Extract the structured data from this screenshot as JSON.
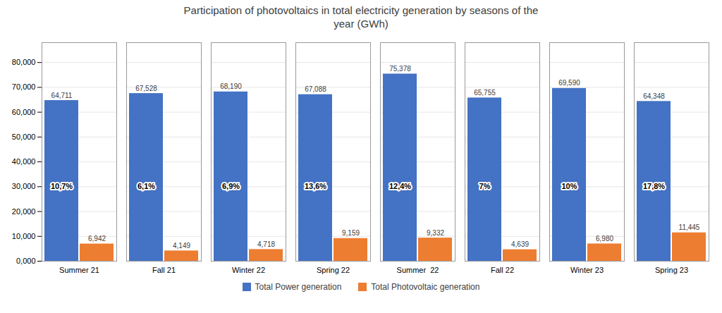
{
  "chart_data": {
    "type": "bar",
    "title": "Participation of photovoltaics in total electricity generation by seasons of the\nyear (GWh)",
    "categories": [
      "Summer 21",
      "Fall 21",
      "Winter 22",
      "Spring 22",
      "Summer  22",
      "Fall 22",
      "Winter 23",
      "Spring 23"
    ],
    "series": [
      {
        "name": "Total Power generation",
        "color": "#4472C4",
        "values": [
          64711,
          67528,
          68190,
          67088,
          75378,
          65755,
          69590,
          64348
        ],
        "value_labels": [
          "64,711",
          "67,528",
          "68,190",
          "67,088",
          "75,378",
          "65,755",
          "69,590",
          "64,348"
        ]
      },
      {
        "name": "Total Photovoltaic generation",
        "color": "#ED7D31",
        "values": [
          6942,
          4149,
          4718,
          9159,
          9332,
          4639,
          6980,
          11445
        ],
        "value_labels": [
          "6,942",
          "4,149",
          "4,718",
          "9,159",
          "9,332",
          "4,639",
          "6,980",
          "11,445"
        ]
      }
    ],
    "annotations": [
      {
        "category": "Summer 21",
        "series": "Total Power generation",
        "y": 30000,
        "text": "10,7%"
      },
      {
        "category": "Fall 21",
        "series": "Total Power generation",
        "y": 30000,
        "text": "6,1%"
      },
      {
        "category": "Winter 22",
        "series": "Total Power generation",
        "y": 30000,
        "text": "6,9%"
      },
      {
        "category": "Spring 22",
        "series": "Total Power generation",
        "y": 30000,
        "text": "13,6%"
      },
      {
        "category": "Summer  22",
        "series": "Total Power generation",
        "y": 30000,
        "text": "12,4%"
      },
      {
        "category": "Fall 22",
        "series": "Total Power generation",
        "y": 30000,
        "text": "7%"
      },
      {
        "category": "Winter 23",
        "series": "Total Power generation",
        "y": 30000,
        "text": "10%"
      },
      {
        "category": "Spring 23",
        "series": "Total Power generation",
        "y": 30000,
        "text": "17,8%"
      }
    ],
    "ylim": [
      0,
      88000
    ],
    "yticks": [
      {
        "value": 0,
        "label": "0,000"
      },
      {
        "value": 10000,
        "label": "10,000"
      },
      {
        "value": 20000,
        "label": "20,000"
      },
      {
        "value": 30000,
        "label": "30,000"
      },
      {
        "value": 40000,
        "label": "40,000"
      },
      {
        "value": 50000,
        "label": "50,000"
      },
      {
        "value": 60000,
        "label": "60,000"
      },
      {
        "value": 70000,
        "label": "70,000"
      },
      {
        "value": 80000,
        "label": "80,000"
      }
    ],
    "grid": true,
    "legend": "bottom",
    "data_labels": true
  }
}
